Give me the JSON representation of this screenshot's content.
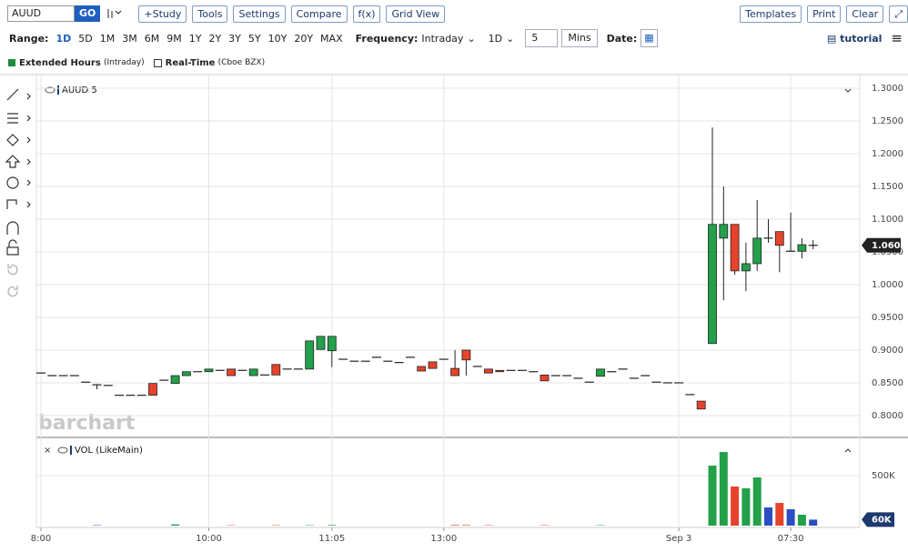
{
  "toolbar": {
    "symbol": "AUUD",
    "go": "GO",
    "buttons": [
      "+Study",
      "Tools",
      "Settings",
      "Compare",
      "f(x)",
      "Grid View"
    ],
    "right_buttons": [
      "Templates",
      "Print",
      "Clear"
    ]
  },
  "range_bar": {
    "range_label": "Range:",
    "ranges": [
      "1D",
      "5D",
      "1M",
      "3M",
      "6M",
      "9M",
      "1Y",
      "2Y",
      "3Y",
      "5Y",
      "10Y",
      "20Y",
      "MAX"
    ],
    "frequency_label": "Frequency:",
    "frequency": "Intraday",
    "period": "1D",
    "interval": "5",
    "interval_unit": "Mins",
    "date_label": "Date:",
    "tutorial": "tutorial"
  },
  "legend": {
    "extended": "Extended Hours",
    "extended_note": "(Intraday)",
    "realtime": "Real-Time",
    "realtime_note": "(Cboe BZX)"
  },
  "chart_data": [
    {
      "type": "candlestick",
      "title": "AUUD 5",
      "watermark": "barchart",
      "categories": [
        "8:00",
        null,
        null,
        null,
        null,
        null,
        null,
        null,
        null,
        null,
        null,
        null,
        null,
        null,
        null,
        "10:00",
        null,
        null,
        null,
        null,
        null,
        null,
        null,
        null,
        null,
        null,
        "11:05",
        null,
        null,
        null,
        null,
        null,
        null,
        null,
        null,
        null,
        "13:00",
        null,
        null,
        null,
        null,
        null,
        null,
        null,
        null,
        null,
        null,
        null,
        null,
        null,
        null,
        null,
        null,
        null,
        null,
        null,
        null,
        "Sep 3",
        null,
        null,
        null,
        null,
        null,
        null,
        null,
        null,
        null,
        "07:30",
        null,
        null
      ],
      "open": [
        0.865,
        0.861,
        0.861,
        0.861,
        0.851,
        0.847,
        0.846,
        0.831,
        0.831,
        0.831,
        0.849,
        0.854,
        0.849,
        0.861,
        0.867,
        0.867,
        0.869,
        0.871,
        0.869,
        0.861,
        0.862,
        0.878,
        0.871,
        0.871,
        0.871,
        0.901,
        0.899,
        0.886,
        0.883,
        0.883,
        0.889,
        0.883,
        0.881,
        0.889,
        0.875,
        0.882,
        0.886,
        0.872,
        0.9,
        0.875,
        0.871,
        0.869,
        0.869,
        0.869,
        0.867,
        0.862,
        0.861,
        0.861,
        0.857,
        0.851,
        0.86,
        0.867,
        0.871,
        0.857,
        0.861,
        0.851,
        0.85,
        0.85,
        0.832,
        0.822,
        0.91,
        1.071,
        1.092,
        1.021,
        1.032,
        1.071,
        1.081,
        1.051,
        1.051,
        1.06
      ],
      "high": [
        0.865,
        0.861,
        0.861,
        0.861,
        0.851,
        0.847,
        0.846,
        0.831,
        0.831,
        0.831,
        0.849,
        0.854,
        0.861,
        0.867,
        0.867,
        0.871,
        0.869,
        0.871,
        0.869,
        0.871,
        0.862,
        0.878,
        0.871,
        0.871,
        0.914,
        0.921,
        0.921,
        0.886,
        0.883,
        0.883,
        0.889,
        0.883,
        0.881,
        0.889,
        0.875,
        0.882,
        0.886,
        0.9,
        0.9,
        0.875,
        0.871,
        0.869,
        0.869,
        0.869,
        0.867,
        0.862,
        0.861,
        0.861,
        0.857,
        0.851,
        0.871,
        0.867,
        0.871,
        0.857,
        0.861,
        0.851,
        0.85,
        0.85,
        0.832,
        0.822,
        1.24,
        1.15,
        1.092,
        1.064,
        1.129,
        1.1,
        1.081,
        1.11,
        1.071,
        1.068
      ],
      "low": [
        0.865,
        0.861,
        0.861,
        0.861,
        0.851,
        0.84,
        0.846,
        0.831,
        0.831,
        0.831,
        0.831,
        0.854,
        0.849,
        0.861,
        0.867,
        0.867,
        0.869,
        0.861,
        0.869,
        0.861,
        0.862,
        0.862,
        0.871,
        0.871,
        0.871,
        0.901,
        0.874,
        0.886,
        0.883,
        0.883,
        0.889,
        0.883,
        0.881,
        0.889,
        0.868,
        0.872,
        0.886,
        0.861,
        0.861,
        0.875,
        0.865,
        0.867,
        0.869,
        0.869,
        0.867,
        0.853,
        0.861,
        0.861,
        0.857,
        0.851,
        0.86,
        0.867,
        0.871,
        0.857,
        0.861,
        0.851,
        0.85,
        0.85,
        0.832,
        0.81,
        0.91,
        0.976,
        1.015,
        0.99,
        1.021,
        1.064,
        1.019,
        1.051,
        1.04,
        1.054
      ],
      "close": [
        0.865,
        0.861,
        0.861,
        0.861,
        0.851,
        0.847,
        0.846,
        0.831,
        0.831,
        0.831,
        0.831,
        0.854,
        0.861,
        0.867,
        0.867,
        0.871,
        0.869,
        0.861,
        0.869,
        0.871,
        0.862,
        0.862,
        0.871,
        0.871,
        0.914,
        0.921,
        0.921,
        0.886,
        0.883,
        0.883,
        0.889,
        0.883,
        0.881,
        0.889,
        0.868,
        0.872,
        0.886,
        0.861,
        0.885,
        0.875,
        0.865,
        0.867,
        0.869,
        0.869,
        0.867,
        0.853,
        0.861,
        0.861,
        0.857,
        0.851,
        0.871,
        0.867,
        0.871,
        0.857,
        0.861,
        0.851,
        0.85,
        0.85,
        0.832,
        0.81,
        1.092,
        1.092,
        1.021,
        1.032,
        1.071,
        1.071,
        1.06,
        1.051,
        1.061,
        1.06
      ],
      "last_label": "1.0600",
      "ylim": [
        0.768,
        1.3125
      ],
      "yticks": [
        {
          "value": 0.8,
          "label": "0.8000"
        },
        {
          "value": 0.85,
          "label": "0.8500"
        },
        {
          "value": 0.9,
          "label": "0.9000"
        },
        {
          "value": 0.95,
          "label": "0.9500"
        },
        {
          "value": 1.0,
          "label": "1.0000"
        },
        {
          "value": 1.05,
          "label": "1.0500"
        },
        {
          "value": 1.1,
          "label": "1.1000"
        },
        {
          "value": 1.15,
          "label": "1.1500"
        },
        {
          "value": 1.2,
          "label": "1.2000"
        },
        {
          "value": 1.25,
          "label": "1.2500"
        },
        {
          "value": 1.3,
          "label": "1.3000"
        }
      ],
      "up_color": "#22a04a",
      "down_color": "#e5432b",
      "grid": true
    },
    {
      "type": "bar",
      "title": "VOL (LikeMain)",
      "values": [
        0,
        0,
        0,
        0,
        0,
        4000,
        0,
        0,
        0,
        0,
        0,
        0,
        12000,
        0,
        0,
        0,
        0,
        4000,
        0,
        0,
        0,
        4000,
        0,
        0,
        4000,
        0,
        6000,
        0,
        0,
        0,
        0,
        0,
        0,
        0,
        0,
        0,
        0,
        6000,
        6000,
        0,
        4000,
        0,
        0,
        0,
        0,
        4000,
        0,
        0,
        0,
        0,
        4000,
        0,
        0,
        0,
        0,
        0,
        0,
        0,
        0,
        0,
        600000,
        736000,
        391000,
        373000,
        482000,
        182000,
        227000,
        164000,
        109000,
        60000
      ],
      "last_label": "60K",
      "ylim": [
        0,
        855000
      ],
      "yticks": [
        {
          "value": 500000,
          "label": "500K"
        }
      ],
      "up_color": "#22a04a",
      "down_color": "#e5432b",
      "flat_color": "#2b4fc3",
      "grid": true
    }
  ]
}
